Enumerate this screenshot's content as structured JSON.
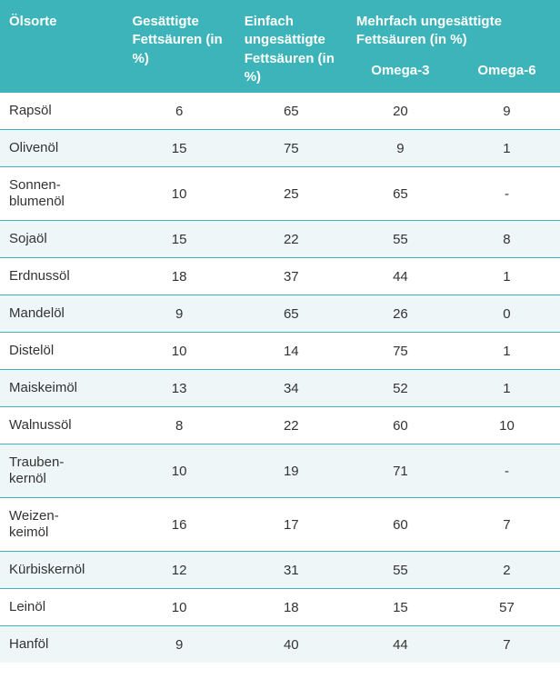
{
  "table": {
    "type": "table",
    "colors": {
      "header_bg": "#3cb4b9",
      "header_text": "#ffffff",
      "row_odd_bg": "#ffffff",
      "row_even_bg": "#eef6f7",
      "border": "#3cb4b9",
      "body_text": "#333333"
    },
    "typography": {
      "header_fontsize": 15,
      "header_fontweight": 600,
      "body_fontsize": 15
    },
    "column_widths_pct": [
      22,
      20,
      20,
      19,
      19
    ],
    "header": {
      "col_name": "Ölsorte",
      "col_saturated": "Gesättigte Fettsäuren (in %)",
      "col_mono": "Einfach ungesättigte Fettsäuren (in %)",
      "col_poly_group": "Mehrfach ungesättigte Fettsäuren (in %)",
      "sub_omega3": "Omega-3",
      "sub_omega6": "Omega-6"
    },
    "rows": [
      {
        "name": "Rapsöl",
        "sat": "6",
        "mono": "65",
        "o3": "20",
        "o6": "9"
      },
      {
        "name": "Olivenöl",
        "sat": "15",
        "mono": "75",
        "o3": "9",
        "o6": "1"
      },
      {
        "name": "Sonnen-\nblumenöl",
        "sat": "10",
        "mono": "25",
        "o3": "65",
        "o6": "-"
      },
      {
        "name": "Sojaöl",
        "sat": "15",
        "mono": "22",
        "o3": "55",
        "o6": "8"
      },
      {
        "name": "Erdnussöl",
        "sat": "18",
        "mono": "37",
        "o3": "44",
        "o6": "1"
      },
      {
        "name": "Mandelöl",
        "sat": "9",
        "mono": "65",
        "o3": "26",
        "o6": "0"
      },
      {
        "name": "Distelöl",
        "sat": "10",
        "mono": "14",
        "o3": "75",
        "o6": "1"
      },
      {
        "name": "Maiskeimöl",
        "sat": "13",
        "mono": "34",
        "o3": "52",
        "o6": "1"
      },
      {
        "name": "Walnussöl",
        "sat": "8",
        "mono": "22",
        "o3": "60",
        "o6": "10"
      },
      {
        "name": "Trauben-\nkernöl",
        "sat": "10",
        "mono": "19",
        "o3": "71",
        "o6": "-"
      },
      {
        "name": "Weizen-\nkeimöl",
        "sat": "16",
        "mono": "17",
        "o3": "60",
        "o6": "7"
      },
      {
        "name": "Kürbiskernöl",
        "sat": "12",
        "mono": "31",
        "o3": "55",
        "o6": "2"
      },
      {
        "name": "Leinöl",
        "sat": "10",
        "mono": "18",
        "o3": "15",
        "o6": "57"
      },
      {
        "name": "Hanföl",
        "sat": "9",
        "mono": "40",
        "o3": "44",
        "o6": "7"
      }
    ]
  }
}
